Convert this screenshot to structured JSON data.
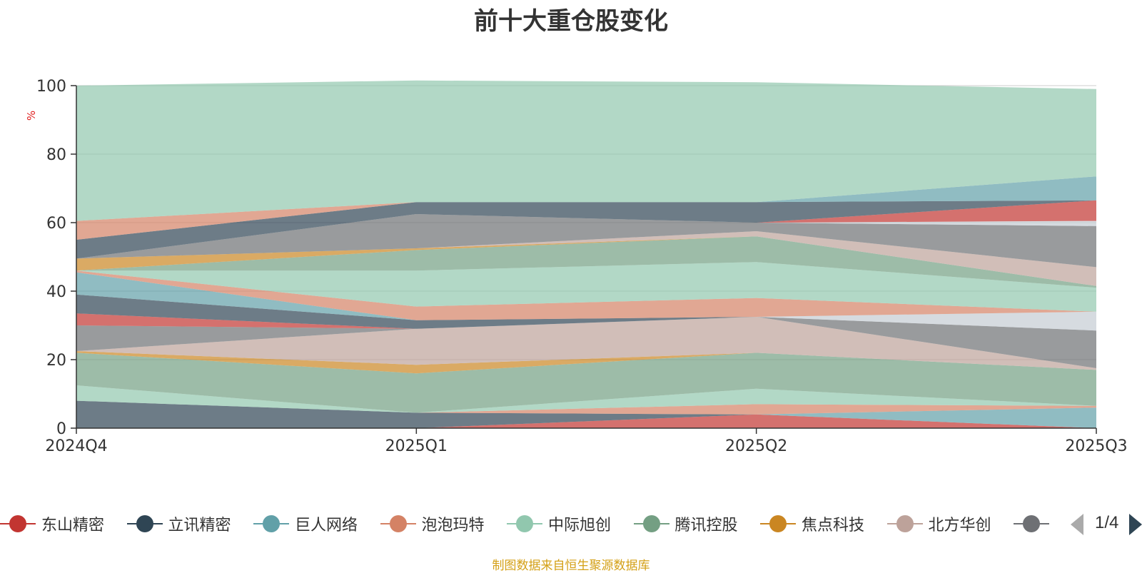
{
  "title": "前十大重仓股变化",
  "source_note": "制图数据来自恒生聚源数据库",
  "legend_pager": "1/4",
  "chart_data": {
    "type": "area",
    "stacked": true,
    "title": "前十大重仓股变化",
    "ylabel": "%",
    "ylim": [
      0,
      100
    ],
    "yticks": [
      "0",
      "20",
      "40",
      "60",
      "80",
      "100"
    ],
    "categories": [
      "2024Q4",
      "2025Q1",
      "2025Q2",
      "2025Q3"
    ],
    "grid": true,
    "legend_position": "bottom",
    "series": [
      {
        "name": "东山精密",
        "color": "#c23531",
        "values": [
          0,
          0,
          4.0,
          0
        ]
      },
      {
        "name": "立讯精密",
        "color": "#2f4554",
        "values": [
          8.0,
          4.5,
          0,
          0
        ]
      },
      {
        "name": "巨人网络",
        "color": "#61a0a8",
        "values": [
          0,
          0,
          0,
          6.0
        ]
      },
      {
        "name": "泡泡玛特",
        "color": "#d48265",
        "values": [
          0,
          0,
          3.0,
          0.5
        ]
      },
      {
        "name": "中际旭创",
        "color": "#91c7ae",
        "values": [
          4.5,
          0,
          4.5,
          0
        ]
      },
      {
        "name": "腾讯控股",
        "color": "#749f83",
        "values": [
          9.5,
          11.5,
          10.5,
          10.5
        ]
      },
      {
        "name": "焦点科技",
        "color": "#ca8622",
        "values": [
          0.5,
          2.5,
          0,
          0
        ]
      },
      {
        "name": "北方华创",
        "color": "#bda29a",
        "values": [
          0,
          10.5,
          10.5,
          0.5
        ]
      },
      {
        "name": "",
        "color": "#6e7074",
        "values": [
          7.5,
          0,
          0,
          11.0
        ]
      },
      {
        "name": "",
        "color": "#c4ccd3",
        "values": [
          0,
          0,
          0,
          5.5
        ]
      },
      {
        "name": "",
        "color": "#c23531",
        "values": [
          3.5,
          0,
          0,
          0
        ]
      },
      {
        "name": "",
        "color": "#2f4554",
        "values": [
          5.5,
          2.5,
          0,
          0
        ]
      },
      {
        "name": "",
        "color": "#61a0a8",
        "values": [
          6.5,
          0,
          0,
          0
        ]
      },
      {
        "name": "",
        "color": "#d48265",
        "values": [
          0.5,
          4.0,
          5.5,
          0
        ]
      },
      {
        "name": "",
        "color": "#91c7ae",
        "values": [
          0,
          10.5,
          10.5,
          7.0
        ]
      },
      {
        "name": "",
        "color": "#749f83",
        "values": [
          0,
          6.0,
          7.5,
          0.5
        ]
      },
      {
        "name": "",
        "color": "#ca8622",
        "values": [
          3.5,
          0.5,
          0,
          0
        ]
      },
      {
        "name": "",
        "color": "#bda29a",
        "values": [
          0,
          0,
          1.5,
          5.5
        ]
      },
      {
        "name": "",
        "color": "#6e7074",
        "values": [
          0,
          10.0,
          2.5,
          12.0
        ]
      },
      {
        "name": "",
        "color": "#c4ccd3",
        "values": [
          0,
          0,
          0,
          1.5
        ]
      },
      {
        "name": "",
        "color": "#c23531",
        "values": [
          0,
          0,
          0,
          6.0
        ]
      },
      {
        "name": "",
        "color": "#2f4554",
        "values": [
          5.5,
          3.5,
          6.0,
          0
        ]
      },
      {
        "name": "",
        "color": "#d48265",
        "values": [
          5.5,
          0,
          0,
          0
        ]
      },
      {
        "name": "",
        "color": "#61a0a8",
        "values": [
          0,
          0,
          0,
          7.0
        ]
      },
      {
        "name": "",
        "color": "#91c7ae",
        "values": [
          39.5,
          35.5,
          35.0,
          25.5
        ]
      }
    ]
  }
}
